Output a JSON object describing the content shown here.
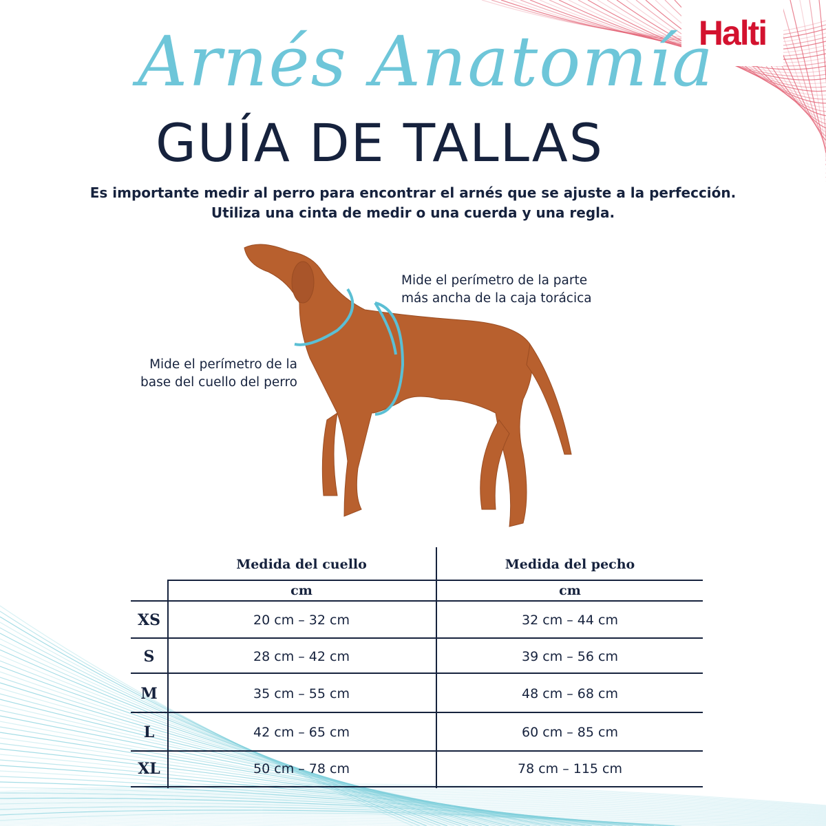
{
  "brand": {
    "logo": "Halti",
    "color": "#d3122f"
  },
  "header": {
    "script_title": "Arnés Anatomía",
    "title": "GUÍA DE TALLAS"
  },
  "intro": {
    "line1": "Es importante medir al perro para encontrar el arnés que se ajuste a la perfección.",
    "line2": "Utiliza una cinta de medir o una cuerda y una regla."
  },
  "annotations": {
    "chest": [
      "Mide el perímetro de la parte",
      "más ancha de la caja torácica"
    ],
    "neck": [
      "Mide el perímetro de la",
      "base del cuello del perro"
    ]
  },
  "table": {
    "columns": [
      "Medida del cuello",
      "Medida del pecho"
    ],
    "units": [
      "cm",
      "cm"
    ],
    "rows": [
      {
        "size": "XS",
        "neck": "20 cm – 32 cm",
        "chest": "32 cm – 44 cm"
      },
      {
        "size": "S",
        "neck": "28 cm – 42 cm",
        "chest": "39 cm – 56 cm"
      },
      {
        "size": "M",
        "neck": "35 cm – 55 cm",
        "chest": "48 cm – 68 cm"
      },
      {
        "size": "L",
        "neck": "42 cm – 65 cm",
        "chest": "60 cm – 85 cm"
      },
      {
        "size": "XL",
        "neck": "50 cm – 78 cm",
        "chest": "78 cm – 115 cm"
      }
    ]
  },
  "colors": {
    "navy": "#16223d",
    "accent": "#6ec6d9",
    "dog": "#b8602e"
  }
}
